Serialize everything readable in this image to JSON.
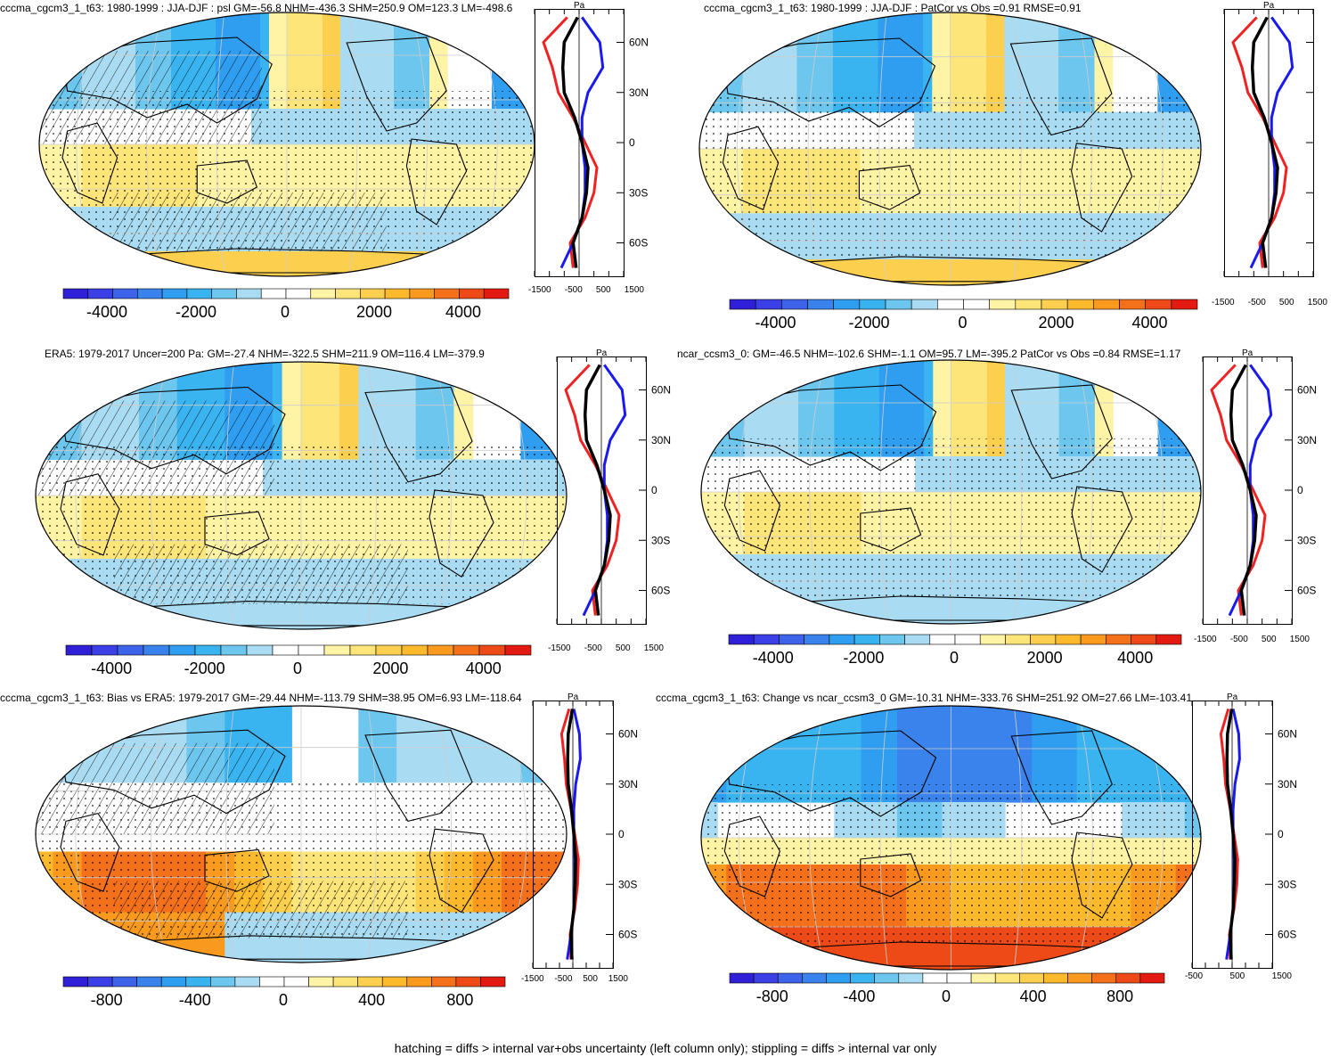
{
  "colors": {
    "neg": [
      "#2f1fd6",
      "#3b3fe6",
      "#3d63ea",
      "#3a82ec",
      "#2f9ef0",
      "#3ab4f0",
      "#6cc6ee",
      "#a9dcf2"
    ],
    "pos": [
      "#fff3a6",
      "#fde57a",
      "#fcd04e",
      "#fbb92b",
      "#f99a1f",
      "#f4701a",
      "#ee4a17",
      "#e31a12"
    ],
    "white": "#ffffff",
    "line_red": "#ee2222",
    "line_blue": "#1a1aee",
    "line_black": "#000000",
    "land": "#000000"
  },
  "footer": "hatching = diffs > internal var+obs uncertainty (left column only); stippling = diffs > internal var only",
  "panels": [
    {
      "title": "cccma_cgcm3_1_t63: 1980-1999 : JJA-DJF : psl GM=-56.8 NHM=-436.3 SHM=250.9 OM=123.3 LM=-498.6",
      "cbar_ticks": [
        "-4000",
        "-2000",
        "0",
        "2000",
        "4000"
      ],
      "profile_units": "Pa",
      "profile_xticks": [
        "-1500",
        "-500",
        "500",
        "1500"
      ],
      "profile_yticks": [
        "60N",
        "30N",
        "0",
        "30S",
        "60S"
      ]
    },
    {
      "title": "cccma_cgcm3_1_t63: 1980-1999 : JJA-DJF : PatCor vs Obs =0.91 RMSE=0.91",
      "cbar_ticks": [
        "-4000",
        "-2000",
        "0",
        "2000",
        "4000"
      ],
      "profile_units": "Pa",
      "profile_xticks": [
        "-1500",
        "-500",
        "500",
        "1500"
      ],
      "profile_yticks": []
    },
    {
      "title": "ERA5: 1979-2017 Uncer=200 Pa: GM=-27.4 NHM=-322.5 SHM=211.9 OM=116.4 LM=-379.9",
      "cbar_ticks": [
        "-4000",
        "-2000",
        "0",
        "2000",
        "4000"
      ],
      "profile_units": "Pa",
      "profile_xticks": [
        "-1500",
        "-500",
        "500",
        "1500"
      ],
      "profile_yticks": [
        "60N",
        "30N",
        "0",
        "30S",
        "60S"
      ]
    },
    {
      "title": "ncar_ccsm3_0: GM=-46.5 NHM=-102.6 SHM=-1.1 OM=95.7 LM=-395.2 PatCor vs Obs =0.84 RMSE=1.17",
      "cbar_ticks": [
        "-4000",
        "-2000",
        "0",
        "2000",
        "4000"
      ],
      "profile_units": "Pa",
      "profile_xticks": [
        "-1500",
        "-500",
        "500",
        "1500"
      ],
      "profile_yticks": [
        "60N",
        "30N",
        "0",
        "30S",
        "60S"
      ]
    },
    {
      "title": "cccma_cgcm3_1_t63: Bias vs ERA5: 1979-2017 GM=-29.44 NHM=-113.79 SHM=38.95 OM=6.93 LM=-118.64",
      "cbar_ticks": [
        "-800",
        "-400",
        "0",
        "400",
        "800"
      ],
      "profile_units": "Pa",
      "profile_xticks": [
        "-1500",
        "-500",
        "500",
        "1500"
      ],
      "profile_yticks": [
        "60N",
        "30N",
        "0",
        "30S",
        "60S"
      ]
    },
    {
      "title": "cccma_cgcm3_1_t63: Change vs ncar_ccsm3_0 GM=-10.31 NHM=-333.76 SHM=251.92 OM=27.66 LM=-103.41",
      "cbar_ticks": [
        "-800",
        "-400",
        "0",
        "400",
        "800"
      ],
      "profile_units": "Pa",
      "profile_xticks": [
        "-500",
        "500",
        "1500"
      ],
      "profile_yticks": [
        "60N",
        "30N",
        "0",
        "30S",
        "60S"
      ]
    }
  ],
  "chart_data": [
    {
      "type": "heatmap",
      "title": "cccma_cgcm3_1_t63: 1980-1999 : JJA-DJF : psl GM=-56.8 NHM=-436.3 SHM=250.9 OM=123.3 LM=-498.6",
      "colorbar_range": [
        -5000,
        5000
      ],
      "colorbar_ticks": [
        -4000,
        -2000,
        0,
        2000,
        4000
      ],
      "profile": {
        "xlim": [
          -1500,
          1500
        ],
        "ylim": [
          -80,
          80
        ],
        "units": "Pa",
        "lat": [
          75,
          60,
          45,
          30,
          15,
          0,
          -15,
          -30,
          -45,
          -60,
          -75
        ],
        "model": [
          -50,
          -500,
          -550,
          -500,
          -150,
          100,
          300,
          250,
          100,
          -200,
          -100
        ],
        "obs": [
          -50,
          -400,
          -400,
          -350,
          -150,
          100,
          250,
          200,
          50,
          -250,
          -150
        ],
        "ocean_land_sep_red": [
          -400,
          -1200,
          -900,
          -700,
          -200,
          200,
          600,
          500,
          200,
          -300,
          -200
        ],
        "ocean_land_sep_blue": [
          100,
          700,
          800,
          300,
          100,
          100,
          200,
          200,
          100,
          -200,
          -600
        ]
      }
    },
    {
      "type": "heatmap",
      "title": "cccma_cgcm3_1_t63: 1980-1999 : JJA-DJF : PatCor vs Obs =0.91 RMSE=0.91",
      "colorbar_range": [
        -5000,
        5000
      ],
      "colorbar_ticks": [
        -4000,
        -2000,
        0,
        2000,
        4000
      ]
    },
    {
      "type": "heatmap",
      "title": "ERA5: 1979-2017 Uncer=200 Pa: GM=-27.4 NHM=-322.5 SHM=211.9 OM=116.4 LM=-379.9",
      "colorbar_range": [
        -5000,
        5000
      ],
      "colorbar_ticks": [
        -4000,
        -2000,
        0,
        2000,
        4000
      ]
    },
    {
      "type": "heatmap",
      "title": "ncar_ccsm3_0: GM=-46.5 NHM=-102.6 SHM=-1.1 OM=95.7 LM=-395.2 PatCor vs Obs =0.84 RMSE=1.17",
      "colorbar_range": [
        -5000,
        5000
      ],
      "colorbar_ticks": [
        -4000,
        -2000,
        0,
        2000,
        4000
      ]
    },
    {
      "type": "heatmap",
      "title": "cccma_cgcm3_1_t63: Bias vs ERA5: 1979-2017 GM=-29.44 NHM=-113.79 SHM=38.95 OM=6.93 LM=-118.64",
      "colorbar_range": [
        -1000,
        1000
      ],
      "colorbar_ticks": [
        -800,
        -400,
        0,
        400,
        800
      ]
    },
    {
      "type": "heatmap",
      "title": "cccma_cgcm3_1_t63: Change vs ncar_ccsm3_0 GM=-10.31 NHM=-333.76 SHM=251.92 OM=27.66 LM=-103.41",
      "colorbar_range": [
        -1000,
        1000
      ],
      "colorbar_ticks": [
        -800,
        -400,
        0,
        400,
        800
      ]
    }
  ]
}
